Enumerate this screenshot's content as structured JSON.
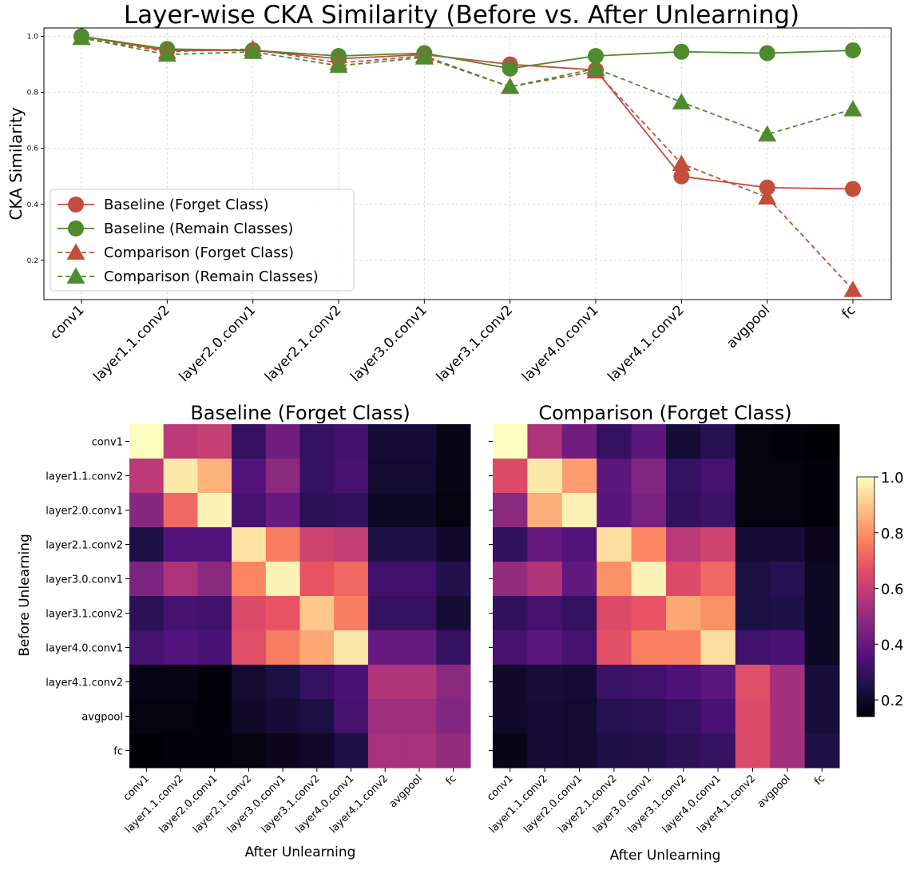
{
  "chart_data": [
    {
      "type": "line",
      "title": "Layer-wise CKA Similarity (Before vs. After Unlearning)",
      "xlabel": "",
      "ylabel": "CKA Similarity",
      "categories": [
        "conv1",
        "layer1.1.conv2",
        "layer2.0.conv1",
        "layer2.1.conv2",
        "layer3.0.conv1",
        "layer3.1.conv2",
        "layer4.0.conv1",
        "layer4.1.conv2",
        "avgpool",
        "fc"
      ],
      "ylim": [
        0.06,
        1.03
      ],
      "yticks": [
        "0.2",
        "0.4",
        "0.6",
        "0.8",
        "1.0"
      ],
      "grid": true,
      "legend_position": "lower-left",
      "series": [
        {
          "name": "Baseline (Forget Class)",
          "color": "#c44e3c",
          "marker": "circle",
          "dashed": false,
          "values": [
            1.0,
            0.95,
            0.95,
            0.92,
            0.935,
            0.9,
            0.88,
            0.5,
            0.46,
            0.455
          ]
        },
        {
          "name": "Baseline (Remain Classes)",
          "color": "#4f8a2f",
          "marker": "circle",
          "dashed": false,
          "values": [
            1.0,
            0.955,
            0.95,
            0.93,
            0.94,
            0.885,
            0.93,
            0.945,
            0.94,
            0.95
          ]
        },
        {
          "name": "Comparison (Forget Class)",
          "color": "#c44e3c",
          "marker": "triangle",
          "dashed": true,
          "values": [
            0.995,
            0.945,
            0.955,
            0.905,
            0.93,
            0.82,
            0.875,
            0.545,
            0.425,
            0.095
          ]
        },
        {
          "name": "Comparison (Remain Classes)",
          "color": "#4f8a2f",
          "marker": "triangle",
          "dashed": true,
          "values": [
            0.995,
            0.935,
            0.945,
            0.895,
            0.925,
            0.82,
            0.885,
            0.765,
            0.65,
            0.74
          ]
        }
      ]
    },
    {
      "type": "heatmap",
      "title": "Baseline (Forget Class)",
      "xlabel": "After Unlearning",
      "ylabel": "Before Unlearning",
      "x_labels": [
        "conv1",
        "layer1.1.conv2",
        "layer2.0.conv1",
        "layer2.1.conv2",
        "layer3.0.conv1",
        "layer3.1.conv2",
        "layer4.0.conv1",
        "layer4.1.conv2",
        "avgpool",
        "fc"
      ],
      "y_labels": [
        "conv1",
        "layer1.1.conv2",
        "layer2.0.conv1",
        "layer2.1.conv2",
        "layer3.0.conv1",
        "layer3.1.conv2",
        "layer4.0.conv1",
        "layer4.1.conv2",
        "avgpool",
        "fc"
      ],
      "values": [
        [
          1.0,
          0.58,
          0.6,
          0.3,
          0.42,
          0.3,
          0.32,
          0.22,
          0.22,
          0.17
        ],
        [
          0.58,
          0.96,
          0.86,
          0.36,
          0.48,
          0.3,
          0.33,
          0.21,
          0.21,
          0.17
        ],
        [
          0.47,
          0.72,
          0.98,
          0.33,
          0.4,
          0.28,
          0.29,
          0.19,
          0.19,
          0.16
        ],
        [
          0.25,
          0.36,
          0.36,
          0.95,
          0.76,
          0.62,
          0.6,
          0.25,
          0.25,
          0.2
        ],
        [
          0.45,
          0.55,
          0.48,
          0.78,
          0.98,
          0.68,
          0.72,
          0.32,
          0.32,
          0.26
        ],
        [
          0.28,
          0.33,
          0.32,
          0.65,
          0.68,
          0.9,
          0.76,
          0.3,
          0.3,
          0.22
        ],
        [
          0.33,
          0.36,
          0.34,
          0.66,
          0.76,
          0.84,
          0.96,
          0.4,
          0.4,
          0.3
        ],
        [
          0.17,
          0.17,
          0.15,
          0.21,
          0.24,
          0.3,
          0.34,
          0.56,
          0.56,
          0.48
        ],
        [
          0.16,
          0.16,
          0.15,
          0.2,
          0.22,
          0.24,
          0.33,
          0.52,
          0.52,
          0.46
        ],
        [
          0.14,
          0.15,
          0.15,
          0.16,
          0.18,
          0.2,
          0.25,
          0.54,
          0.54,
          0.5
        ]
      ]
    },
    {
      "type": "heatmap",
      "title": "Comparison (Forget Class)",
      "xlabel": "After Unlearning",
      "ylabel": "",
      "x_labels": [
        "conv1",
        "layer1.1.conv2",
        "layer2.0.conv1",
        "layer2.1.conv2",
        "layer3.0.conv1",
        "layer3.1.conv2",
        "layer4.0.conv1",
        "layer4.1.conv2",
        "avgpool",
        "fc"
      ],
      "y_labels": [],
      "values": [
        [
          1.0,
          0.55,
          0.42,
          0.3,
          0.38,
          0.22,
          0.27,
          0.16,
          0.15,
          0.13
        ],
        [
          0.65,
          0.96,
          0.82,
          0.38,
          0.46,
          0.3,
          0.33,
          0.16,
          0.16,
          0.15
        ],
        [
          0.48,
          0.85,
          0.98,
          0.37,
          0.44,
          0.29,
          0.31,
          0.16,
          0.16,
          0.15
        ],
        [
          0.29,
          0.4,
          0.36,
          0.94,
          0.78,
          0.58,
          0.62,
          0.22,
          0.22,
          0.18
        ],
        [
          0.5,
          0.56,
          0.39,
          0.8,
          0.98,
          0.65,
          0.72,
          0.24,
          0.27,
          0.19
        ],
        [
          0.29,
          0.33,
          0.3,
          0.65,
          0.68,
          0.84,
          0.8,
          0.24,
          0.25,
          0.19
        ],
        [
          0.33,
          0.38,
          0.33,
          0.67,
          0.77,
          0.77,
          0.94,
          0.32,
          0.34,
          0.19
        ],
        [
          0.2,
          0.23,
          0.22,
          0.31,
          0.32,
          0.35,
          0.38,
          0.66,
          0.53,
          0.23
        ],
        [
          0.2,
          0.22,
          0.21,
          0.27,
          0.28,
          0.3,
          0.34,
          0.65,
          0.53,
          0.23
        ],
        [
          0.17,
          0.22,
          0.21,
          0.25,
          0.26,
          0.28,
          0.3,
          0.65,
          0.53,
          0.25
        ]
      ]
    }
  ],
  "colorbar": {
    "ticks": [
      "0.2",
      "0.4",
      "0.6",
      "0.8",
      "1.0"
    ],
    "range": [
      0.14,
      1.0
    ],
    "colormap": "magma",
    "stops": [
      "#000004",
      "#1d1147",
      "#51127c",
      "#822681",
      "#b73779",
      "#e75263",
      "#fc8961",
      "#fec488",
      "#fcfdbf"
    ]
  }
}
